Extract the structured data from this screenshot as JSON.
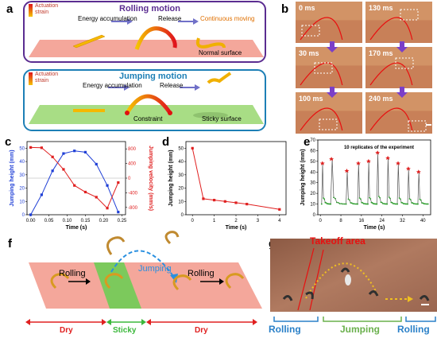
{
  "panels": {
    "a": {
      "label": "a",
      "rolling": {
        "title": "Rolling motion",
        "legend": "Actuation strain",
        "energy": "Energy accumulation",
        "release": "Release",
        "continuous": "Continuous moving",
        "surface": "Normal surface"
      },
      "jumping": {
        "title": "Jumping motion",
        "legend": "Actuation strain",
        "energy": "Energy accumulation",
        "release": "Release",
        "constraint": "Constraint",
        "surface": "Sticky surface"
      }
    },
    "b": {
      "label": "b",
      "times": [
        "0 ms",
        "130 ms",
        "30 ms",
        "170 ms",
        "100 ms",
        "240 ms"
      ]
    },
    "c": {
      "label": "c"
    },
    "d": {
      "label": "d"
    },
    "e": {
      "label": "e"
    },
    "f": {
      "label": "f",
      "rolling1": "Rolling",
      "jumping": "Jumping",
      "rolling2": "Rolling",
      "dry1": "Dry",
      "sticky": "Sticky",
      "dry2": "Dry"
    },
    "g": {
      "label": "g",
      "takeoff": "Takeoff area",
      "rolling1": "Rolling",
      "jumping": "Jumping",
      "rolling2": "Rolling"
    }
  },
  "chart_data": [
    {
      "id": "c",
      "type": "line",
      "xlabel": "Time (s)",
      "ylabel": "Jumping height (mm)",
      "ylabel_right": "Jumping velocity (mm/s)",
      "xlim": [
        -0.01,
        0.26
      ],
      "ylim": [
        0,
        55
      ],
      "ylim_right": [
        -1000,
        1000
      ],
      "xticks": [
        "0.00",
        "0.05",
        "0.10",
        "0.15",
        "0.20",
        "0.25"
      ],
      "yticks": [
        "0",
        "10",
        "20",
        "30",
        "40",
        "50"
      ],
      "yticks_right": [
        "-800",
        "-400",
        "0",
        "400",
        "800"
      ],
      "series": [
        {
          "axis": "left",
          "color": "#1f3fd6",
          "x": [
            0,
            0.03,
            0.06,
            0.09,
            0.12,
            0.15,
            0.18,
            0.21,
            0.24
          ],
          "y": [
            0,
            15,
            33,
            46,
            48,
            47,
            38,
            22,
            2
          ]
        },
        {
          "axis": "right",
          "color": "#e02020",
          "x": [
            0,
            0.03,
            0.06,
            0.09,
            0.12,
            0.15,
            0.18,
            0.21,
            0.24
          ],
          "y": [
            840,
            830,
            580,
            240,
            -200,
            -380,
            -520,
            -820,
            -120
          ]
        }
      ]
    },
    {
      "id": "d",
      "type": "line",
      "xlabel": "Time (s)",
      "ylabel": "Jumping height (mm)",
      "xlim": [
        -0.3,
        4.3
      ],
      "ylim": [
        0,
        55
      ],
      "xticks": [
        "0",
        "1",
        "2",
        "3",
        "4"
      ],
      "yticks": [
        "0",
        "10",
        "20",
        "30",
        "40",
        "50"
      ],
      "series": [
        {
          "color": "#e02020",
          "x": [
            0,
            0.5,
            1.0,
            1.5,
            2.0,
            2.5,
            4.0
          ],
          "y": [
            50,
            12,
            11,
            10,
            9,
            8,
            4
          ]
        }
      ]
    },
    {
      "id": "e",
      "type": "line",
      "xlabel": "Time (s)",
      "ylabel": "Jumping height (mm)",
      "annotation": "10 replicates of the experiment",
      "xlim": [
        -1,
        43
      ],
      "ylim": [
        0,
        70
      ],
      "xticks": [
        "0",
        "8",
        "16",
        "24",
        "32",
        "40"
      ],
      "yticks": [
        "0",
        "10",
        "20",
        "30",
        "40",
        "50",
        "60",
        "70"
      ],
      "peaks": {
        "x": [
          0.5,
          4,
          10,
          14.5,
          18.5,
          22,
          26,
          30,
          34,
          38
        ],
        "y": [
          48,
          52,
          41,
          48,
          50,
          58,
          53,
          48,
          43,
          40
        ]
      }
    }
  ]
}
